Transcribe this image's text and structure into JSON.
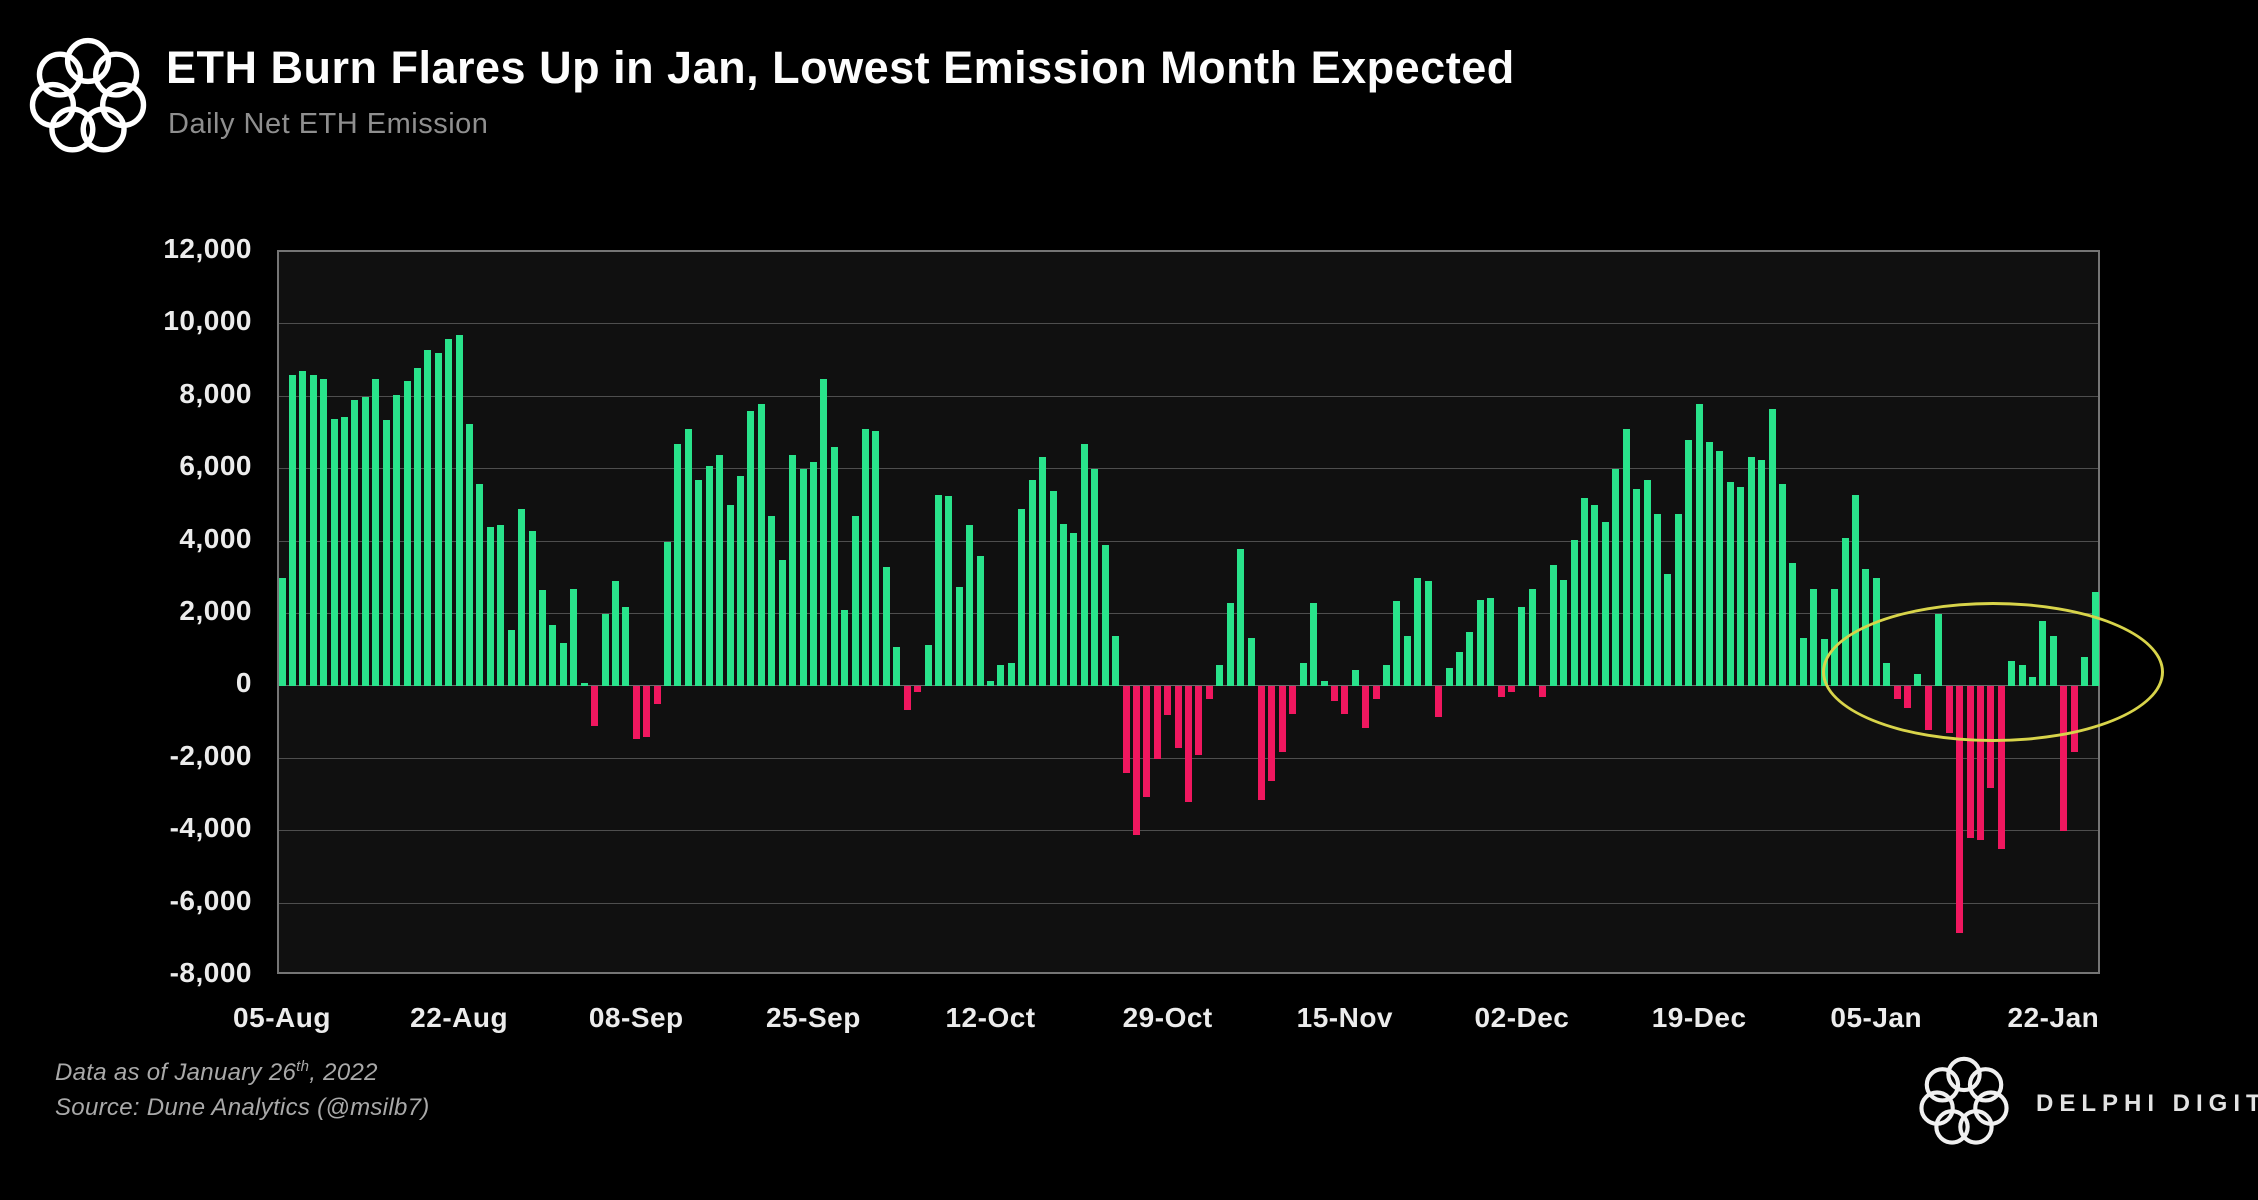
{
  "header": {
    "title": "ETH Burn Flares Up in Jan, Lowest Emission Month Expected",
    "subtitle": "Daily Net ETH Emission"
  },
  "footer": {
    "line1_prefix": "Data as of January 26",
    "line1_sup": "th",
    "line1_suffix": ", 2022",
    "line2": "Source: Dune Analytics (@msilb7)",
    "brand": "DELPHI DIGITAL"
  },
  "chart_data": {
    "type": "bar",
    "title": "Daily Net ETH Emission",
    "ylabel": "",
    "xlabel": "",
    "ylim": [
      -8000,
      12000
    ],
    "grid": true,
    "y_ticks": [
      {
        "value": 12000,
        "label": "12,000"
      },
      {
        "value": 10000,
        "label": "10,000"
      },
      {
        "value": 8000,
        "label": "8,000"
      },
      {
        "value": 6000,
        "label": "6,000"
      },
      {
        "value": 4000,
        "label": "4,000"
      },
      {
        "value": 2000,
        "label": "2,000"
      },
      {
        "value": 0,
        "label": "0"
      },
      {
        "value": -2000,
        "label": "-2,000"
      },
      {
        "value": -4000,
        "label": "-4,000"
      },
      {
        "value": -6000,
        "label": "-6,000"
      },
      {
        "value": -8000,
        "label": "-8,000"
      }
    ],
    "x_ticks": [
      {
        "day": 0,
        "label": "05-Aug"
      },
      {
        "day": 17,
        "label": "22-Aug"
      },
      {
        "day": 34,
        "label": "08-Sep"
      },
      {
        "day": 51,
        "label": "25-Sep"
      },
      {
        "day": 68,
        "label": "12-Oct"
      },
      {
        "day": 85,
        "label": "29-Oct"
      },
      {
        "day": 102,
        "label": "15-Nov"
      },
      {
        "day": 119,
        "label": "02-Dec"
      },
      {
        "day": 136,
        "label": "19-Dec"
      },
      {
        "day": 153,
        "label": "05-Jan"
      },
      {
        "day": 170,
        "label": "22-Jan"
      }
    ],
    "colors": {
      "positive": "#29e38b",
      "negative": "#f0175f",
      "annotation": "#d8d44a"
    },
    "values": [
      3000,
      8600,
      8700,
      8600,
      8500,
      7400,
      7450,
      7900,
      8000,
      8500,
      7350,
      8050,
      8450,
      8800,
      9300,
      9200,
      9600,
      9700,
      7250,
      5600,
      4400,
      4450,
      1550,
      4900,
      4300,
      2650,
      1700,
      1200,
      2700,
      100,
      -1100,
      2000,
      2900,
      2200,
      -1450,
      -1400,
      -500,
      4000,
      6700,
      7100,
      5700,
      6100,
      6400,
      5000,
      5800,
      7600,
      7800,
      4700,
      3500,
      6400,
      6000,
      6200,
      8500,
      6600,
      2100,
      4700,
      7100,
      7050,
      3300,
      1100,
      -650,
      -150,
      1150,
      5300,
      5250,
      2750,
      4450,
      3600,
      150,
      600,
      650,
      4900,
      5700,
      6350,
      5400,
      4500,
      4250,
      6700,
      6000,
      3900,
      1400,
      -2400,
      -4100,
      -3050,
      -2000,
      -800,
      -1700,
      -3200,
      -1900,
      -350,
      600,
      2300,
      3800,
      1350,
      -3150,
      -2600,
      -1800,
      -750,
      650,
      2300,
      150,
      -400,
      -750,
      450,
      -1150,
      -350,
      600,
      2350,
      1400,
      3000,
      2900,
      -850,
      500,
      950,
      1500,
      2400,
      2450,
      -300,
      -150,
      2200,
      2700,
      -300,
      3350,
      2950,
      4050,
      5200,
      5000,
      4550,
      6000,
      7100,
      5450,
      5700,
      4750,
      3100,
      4750,
      6800,
      7800,
      6750,
      6500,
      5650,
      5500,
      6350,
      6250,
      7650,
      5600,
      3400,
      1350,
      2700,
      1300,
      2700,
      4100,
      5300,
      3250,
      3000,
      650,
      -350,
      -600,
      350,
      -1200,
      2000,
      -1300,
      -6800,
      -4200,
      -4250,
      -2800,
      -4500,
      700,
      600,
      250,
      1800,
      1400,
      -4000,
      -1800,
      800,
      2600
    ],
    "annotation_ellipse": {
      "center_day": 163.9,
      "center_value": 425,
      "radius_days": 16.1,
      "radius_value": 1850
    }
  }
}
